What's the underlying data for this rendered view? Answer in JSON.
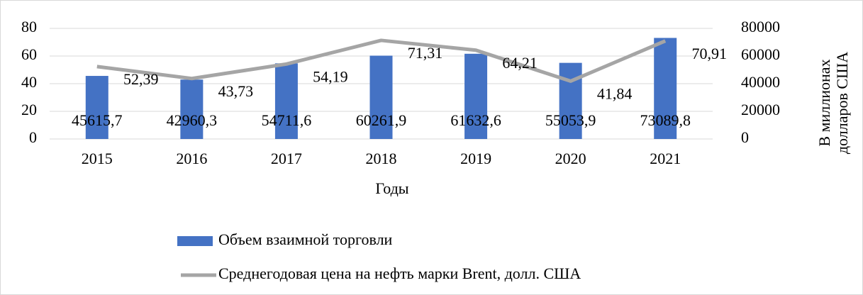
{
  "chart_data": {
    "type": "bar-line",
    "categories": [
      "2015",
      "2016",
      "2017",
      "2018",
      "2019",
      "2020",
      "2021"
    ],
    "x_label": "Годы",
    "y2_label": [
      "В миллионах",
      "долларов США"
    ],
    "series": [
      {
        "name": "Объем взаимной торговли",
        "type": "bar",
        "axis": "y2",
        "color": "#4472c4",
        "values": [
          45615.7,
          42960.3,
          54711.6,
          60261.9,
          61632.6,
          55053.9,
          73089.8
        ],
        "value_labels": [
          "45615,7",
          "42960,3",
          "54711,6",
          "60261,9",
          "61632,6",
          "55053,9",
          "73089,8"
        ]
      },
      {
        "name": "Среднегодовая цена на нефть марки Brent, долл. США",
        "type": "line",
        "axis": "y",
        "color": "#a5a5a5",
        "values": [
          52.39,
          43.73,
          54.19,
          71.31,
          64.21,
          41.84,
          70.91
        ],
        "value_labels": [
          "52,39",
          "43,73",
          "54,19",
          "71,31",
          "64,21",
          "41,84",
          "70,91"
        ]
      }
    ],
    "ylim": [
      0,
      80
    ],
    "yticks": [
      0,
      20,
      40,
      60,
      80
    ],
    "y2lim": [
      0,
      80000
    ],
    "y2ticks": [
      0,
      20000,
      40000,
      60000,
      80000
    ],
    "grid": true,
    "legend": "bottom"
  }
}
